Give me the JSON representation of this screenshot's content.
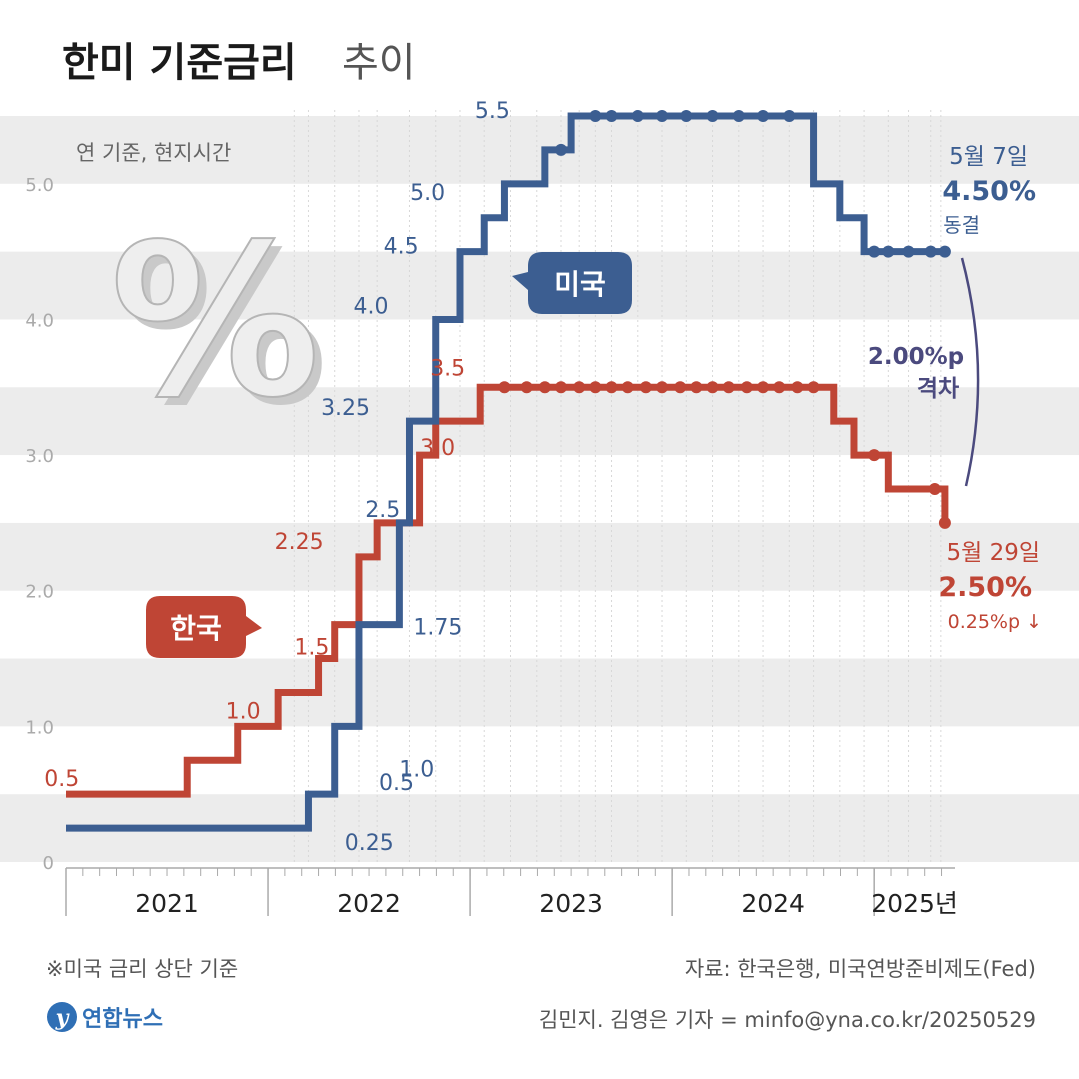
{
  "title": "한미 기준금리",
  "title_suffix": "추이",
  "subtitle": "연 기준, 현지시간",
  "decor_symbol": "%",
  "footnote": "※미국 금리 상단 기준",
  "source": "자료: 한국은행, 미국연방준비제도(Fed)",
  "credit": "김민지. 김영은 기자 = minfo@yna.co.kr/20250529",
  "logo_text": "연합뉴스",
  "colors": {
    "us": "#3c5e91",
    "korea": "#bf4535",
    "gap": "#4b4a7e",
    "axis": "#aaaaaa",
    "band": "#ececec",
    "text": "#222222"
  },
  "chart_data": {
    "type": "line",
    "step": true,
    "ylim": [
      0,
      5.5
    ],
    "yticks": [
      0,
      1.0,
      2.0,
      3.0,
      4.0,
      5.0
    ],
    "ytick_labels": [
      "0",
      "1.0",
      "2.0",
      "3.0",
      "4.0",
      "5.0"
    ],
    "xlim": [
      2021.0,
      2025.4
    ],
    "year_labels": [
      {
        "label": "2021",
        "x": 2021.5
      },
      {
        "label": "2022",
        "x": 2022.5
      },
      {
        "label": "2023",
        "x": 2023.5
      },
      {
        "label": "2024",
        "x": 2024.5
      },
      {
        "label": "2025년",
        "x": 2025.2
      }
    ],
    "year_bounds": [
      2021.0,
      2022.0,
      2023.0,
      2024.0,
      2025.0
    ],
    "meeting_x": [
      2022.13,
      2022.2,
      2022.33,
      2022.45,
      2022.54,
      2022.7,
      2022.83,
      2022.95,
      2023.07,
      2023.2,
      2023.33,
      2023.45,
      2023.54,
      2023.62,
      2023.7,
      2023.83,
      2023.95,
      2024.07,
      2024.2,
      2024.33,
      2024.45,
      2024.58,
      2024.7,
      2024.83,
      2024.95,
      2025.07,
      2025.17,
      2025.28,
      2025.33
    ],
    "series": [
      {
        "name": "미국",
        "color_key": "us",
        "steps": [
          [
            2021.0,
            0.25
          ],
          [
            2022.2,
            0.5
          ],
          [
            2022.33,
            1.0
          ],
          [
            2022.45,
            1.75
          ],
          [
            2022.65,
            2.5
          ],
          [
            2022.7,
            3.25
          ],
          [
            2022.83,
            4.0
          ],
          [
            2022.95,
            4.5
          ],
          [
            2023.07,
            4.75
          ],
          [
            2023.17,
            5.0
          ],
          [
            2023.37,
            5.25
          ],
          [
            2023.5,
            5.5
          ],
          [
            2024.7,
            5.0
          ],
          [
            2024.83,
            4.75
          ],
          [
            2024.95,
            4.5
          ],
          [
            2025.35,
            4.5
          ]
        ],
        "hold_points": [
          [
            2023.45,
            5.25
          ],
          [
            2023.62,
            5.5
          ],
          [
            2023.7,
            5.5
          ],
          [
            2023.83,
            5.5
          ],
          [
            2023.95,
            5.5
          ],
          [
            2024.07,
            5.5
          ],
          [
            2024.2,
            5.5
          ],
          [
            2024.33,
            5.5
          ],
          [
            2024.45,
            5.5
          ],
          [
            2024.58,
            5.5
          ],
          [
            2025.0,
            4.5
          ],
          [
            2025.07,
            4.5
          ],
          [
            2025.17,
            4.5
          ],
          [
            2025.28,
            4.5
          ],
          [
            2025.35,
            4.5
          ]
        ],
        "labels": [
          {
            "text": "0.25",
            "x": 2022.33,
            "y": 0.25
          },
          {
            "text": "0.5",
            "x": 2022.48,
            "y": 0.5
          },
          {
            "text": "1.0",
            "x": 2022.6,
            "y": 1.0
          },
          {
            "text": "1.75",
            "x": 2022.65,
            "y": 1.75
          },
          {
            "text": "2.5",
            "x": 2022.58,
            "y": 2.5
          },
          {
            "text": "3.25",
            "x": 2022.5,
            "y": 3.25
          },
          {
            "text": "4.0",
            "x": 2022.7,
            "y": 4.0
          },
          {
            "text": "4.5",
            "x": 2022.8,
            "y": 4.5
          },
          {
            "text": "5.0",
            "x": 2023.03,
            "y": 5.0
          },
          {
            "text": "5.5",
            "x": 2023.37,
            "y": 5.5
          }
        ],
        "end_label": {
          "date": "5월 7일",
          "value": "4.50%",
          "note": "동결"
        }
      },
      {
        "name": "한국",
        "color_key": "korea",
        "steps": [
          [
            2021.0,
            0.5
          ],
          [
            2021.6,
            0.75
          ],
          [
            2021.85,
            1.0
          ],
          [
            2022.05,
            1.25
          ],
          [
            2022.25,
            1.5
          ],
          [
            2022.33,
            1.75
          ],
          [
            2022.45,
            2.25
          ],
          [
            2022.54,
            2.5
          ],
          [
            2022.65,
            2.5
          ],
          [
            2022.75,
            3.0
          ],
          [
            2022.83,
            3.25
          ],
          [
            2023.05,
            3.5
          ],
          [
            2024.8,
            3.25
          ],
          [
            2024.9,
            3.0
          ],
          [
            2025.07,
            2.75
          ],
          [
            2025.25,
            2.75
          ],
          [
            2025.35,
            2.5
          ]
        ],
        "hold_points": [
          [
            2023.17,
            3.5
          ],
          [
            2023.28,
            3.5
          ],
          [
            2023.37,
            3.5
          ],
          [
            2023.45,
            3.5
          ],
          [
            2023.54,
            3.5
          ],
          [
            2023.62,
            3.5
          ],
          [
            2023.7,
            3.5
          ],
          [
            2023.78,
            3.5
          ],
          [
            2023.87,
            3.5
          ],
          [
            2023.95,
            3.5
          ],
          [
            2024.04,
            3.5
          ],
          [
            2024.12,
            3.5
          ],
          [
            2024.2,
            3.5
          ],
          [
            2024.28,
            3.5
          ],
          [
            2024.37,
            3.5
          ],
          [
            2024.45,
            3.5
          ],
          [
            2024.53,
            3.5
          ],
          [
            2024.62,
            3.5
          ],
          [
            2024.7,
            3.5
          ],
          [
            2025.0,
            3.0
          ],
          [
            2025.3,
            2.75
          ],
          [
            2025.35,
            2.5
          ]
        ],
        "labels": [
          {
            "text": "0.5",
            "x": 2021.1,
            "y": 0.5
          },
          {
            "text": "1.0",
            "x": 2021.82,
            "y": 1.0
          },
          {
            "text": "1.5",
            "x": 2022.18,
            "y": 1.5
          },
          {
            "text": "2.25",
            "x": 2022.3,
            "y": 2.25
          },
          {
            "text": "3.0",
            "x": 2023.0,
            "y": 3.0
          },
          {
            "text": "3.5",
            "x": 2023.05,
            "y": 3.5
          }
        ],
        "end_label": {
          "date": "5월 29일",
          "value": "2.50%",
          "note": "0.25%p ↓"
        }
      }
    ],
    "gap_annotation": {
      "value": "2.00%p",
      "text": "격차"
    }
  }
}
